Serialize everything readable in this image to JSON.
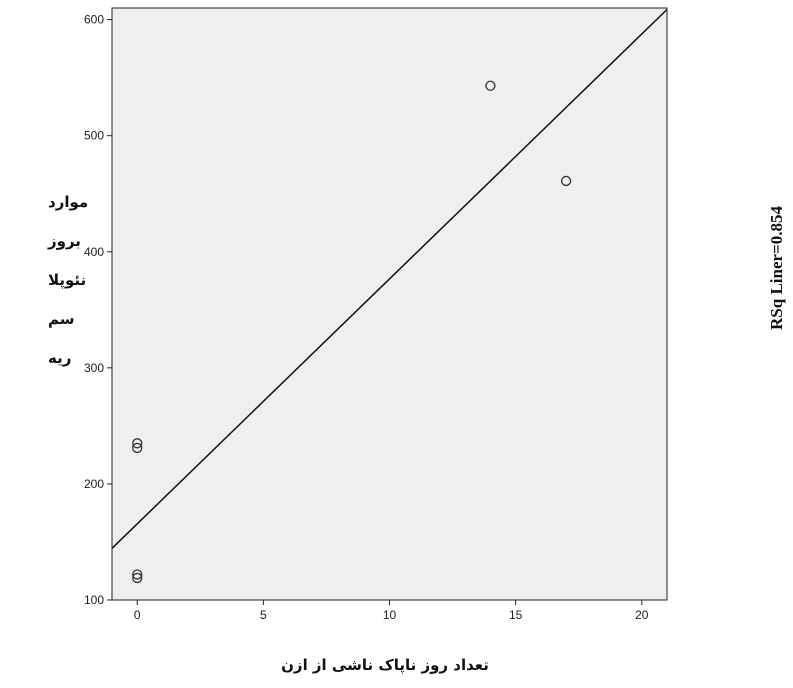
{
  "chart_data": {
    "type": "scatter",
    "xlabel": "تعداد روز ناپاک ناشی از ازن",
    "ylabel_lines": [
      "موارد",
      "بروز",
      "نئوپلا",
      "سم",
      "ریه"
    ],
    "annotation": "RSq Liner=0.854",
    "xlim": [
      -1,
      21
    ],
    "ylim": [
      100,
      610
    ],
    "x_ticks": [
      0,
      5,
      10,
      15,
      20
    ],
    "y_ticks": [
      100,
      200,
      300,
      400,
      500,
      600
    ],
    "grid": false,
    "points": [
      {
        "x": 0,
        "y": 235
      },
      {
        "x": 0,
        "y": 231
      },
      {
        "x": 0,
        "y": 122
      },
      {
        "x": 0,
        "y": 119
      },
      {
        "x": 14,
        "y": 543
      },
      {
        "x": 17,
        "y": 461
      }
    ],
    "fit_line": {
      "intercept": 165.6,
      "slope": 21.1
    },
    "colors": {
      "plot_background": "#efefef",
      "marker": "#333333",
      "line": "#111111"
    }
  }
}
